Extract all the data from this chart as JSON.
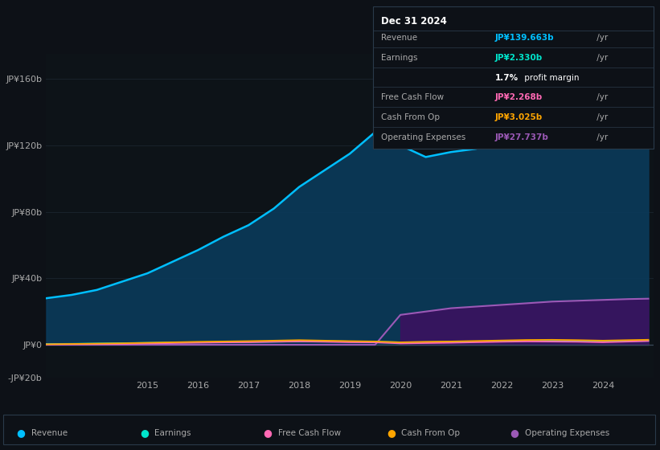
{
  "bg_color": "#0d1117",
  "chart_bg": "#0d1318",
  "grid_color": "#1e2a35",
  "text_color": "#aaaaaa",
  "years": [
    2013.0,
    2013.5,
    2014.0,
    2014.5,
    2015.0,
    2015.5,
    2016.0,
    2016.5,
    2017.0,
    2017.5,
    2018.0,
    2018.5,
    2019.0,
    2019.5,
    2020.0,
    2020.5,
    2021.0,
    2021.5,
    2022.0,
    2022.5,
    2023.0,
    2023.5,
    2024.0,
    2024.5,
    2024.9
  ],
  "revenue": [
    28,
    30,
    33,
    38,
    43,
    50,
    57,
    65,
    72,
    82,
    95,
    105,
    115,
    128,
    120,
    113,
    116,
    118,
    127,
    140,
    152,
    148,
    142,
    138,
    139.663
  ],
  "earnings": [
    0.5,
    0.6,
    0.8,
    1.0,
    1.2,
    1.4,
    1.5,
    1.6,
    1.7,
    1.8,
    2.0,
    2.2,
    2.0,
    1.8,
    1.5,
    1.6,
    1.8,
    2.0,
    2.1,
    2.3,
    2.4,
    2.2,
    2.0,
    2.2,
    2.33
  ],
  "free_cash_flow": [
    0.2,
    0.3,
    0.4,
    0.5,
    0.8,
    1.0,
    1.2,
    1.4,
    1.5,
    1.8,
    2.0,
    1.8,
    1.5,
    1.4,
    0.8,
    1.0,
    1.2,
    1.5,
    1.8,
    2.0,
    1.9,
    1.8,
    1.5,
    1.9,
    2.268
  ],
  "cash_from_op": [
    0.3,
    0.5,
    0.7,
    0.9,
    1.2,
    1.5,
    1.8,
    2.0,
    2.2,
    2.5,
    2.8,
    2.5,
    2.2,
    2.0,
    1.5,
    1.8,
    2.0,
    2.3,
    2.6,
    2.9,
    3.0,
    2.8,
    2.5,
    2.8,
    3.025
  ],
  "op_expenses": [
    0,
    0,
    0,
    0,
    0,
    0,
    0,
    0,
    0,
    0,
    0,
    0,
    0,
    0,
    18,
    20,
    22,
    23,
    24,
    25,
    26,
    26.5,
    27,
    27.5,
    27.737
  ],
  "revenue_color": "#00bfff",
  "earnings_color": "#00e5cc",
  "fcf_color": "#ff69b4",
  "cashop_color": "#ffa500",
  "opex_line_color": "#9b59b6",
  "opex_area_color": "#7b3bb5",
  "revenue_fill_color": "#0a3a5a",
  "opex_fill_color": "#3a1260",
  "ylim_min": -20,
  "ylim_max": 175,
  "yticks": [
    -20,
    0,
    40,
    80,
    120,
    160
  ],
  "ytick_labels": [
    "-JP¥20b",
    "JP¥0",
    "JP¥40b",
    "JP¥80b",
    "JP¥120b",
    "JP¥160b"
  ],
  "xticks": [
    2015,
    2016,
    2017,
    2018,
    2019,
    2020,
    2021,
    2022,
    2023,
    2024
  ],
  "info_box": {
    "title": "Dec 31 2024",
    "rows": [
      {
        "label": "Revenue",
        "value": "JP¥139.663b",
        "suffix": " /yr",
        "value_color": "#00bfff"
      },
      {
        "label": "Earnings",
        "value": "JP¥2.330b",
        "suffix": " /yr",
        "value_color": "#00e5cc"
      },
      {
        "label": "",
        "value": "",
        "suffix": "",
        "value_color": "#ffffff",
        "margin_text": true
      },
      {
        "label": "Free Cash Flow",
        "value": "JP¥2.268b",
        "suffix": " /yr",
        "value_color": "#ff69b4"
      },
      {
        "label": "Cash From Op",
        "value": "JP¥3.025b",
        "suffix": " /yr",
        "value_color": "#ffa500"
      },
      {
        "label": "Operating Expenses",
        "value": "JP¥27.737b",
        "suffix": " /yr",
        "value_color": "#9b59b6"
      }
    ]
  },
  "legend": [
    {
      "label": "Revenue",
      "color": "#00bfff"
    },
    {
      "label": "Earnings",
      "color": "#00e5cc"
    },
    {
      "label": "Free Cash Flow",
      "color": "#ff69b4"
    },
    {
      "label": "Cash From Op",
      "color": "#ffa500"
    },
    {
      "label": "Operating Expenses",
      "color": "#9b59b6"
    }
  ]
}
